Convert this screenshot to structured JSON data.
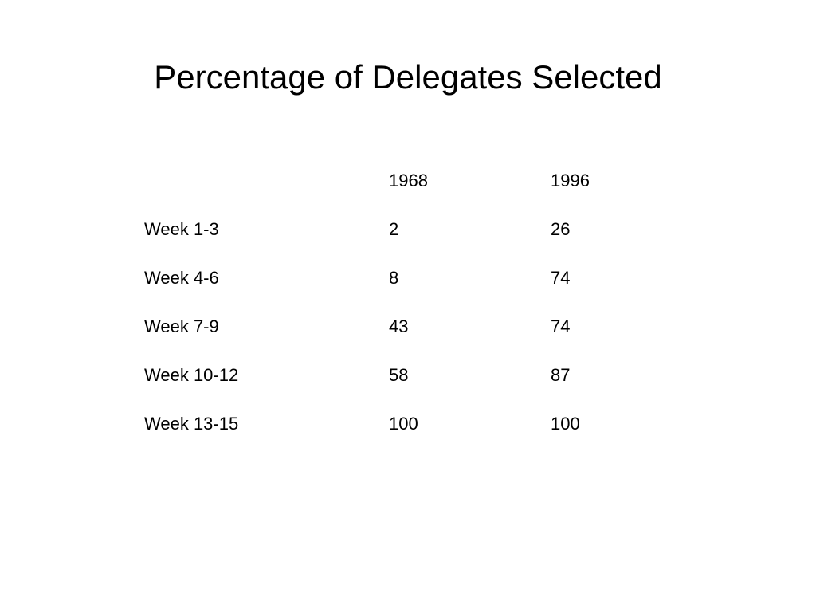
{
  "slide": {
    "title": "Percentage of Delegates Selected"
  },
  "table": {
    "columns": [
      "",
      "1968",
      "1996"
    ],
    "rows": [
      {
        "label": "Week 1-3",
        "values": [
          "2",
          "26"
        ]
      },
      {
        "label": "Week 4-6",
        "values": [
          "8",
          "74"
        ]
      },
      {
        "label": "Week 7-9",
        "values": [
          "43",
          "74"
        ]
      },
      {
        "label": "Week 10-12",
        "values": [
          "58",
          "87"
        ]
      },
      {
        "label": "Week 13-15",
        "values": [
          "100",
          "100"
        ]
      }
    ]
  }
}
